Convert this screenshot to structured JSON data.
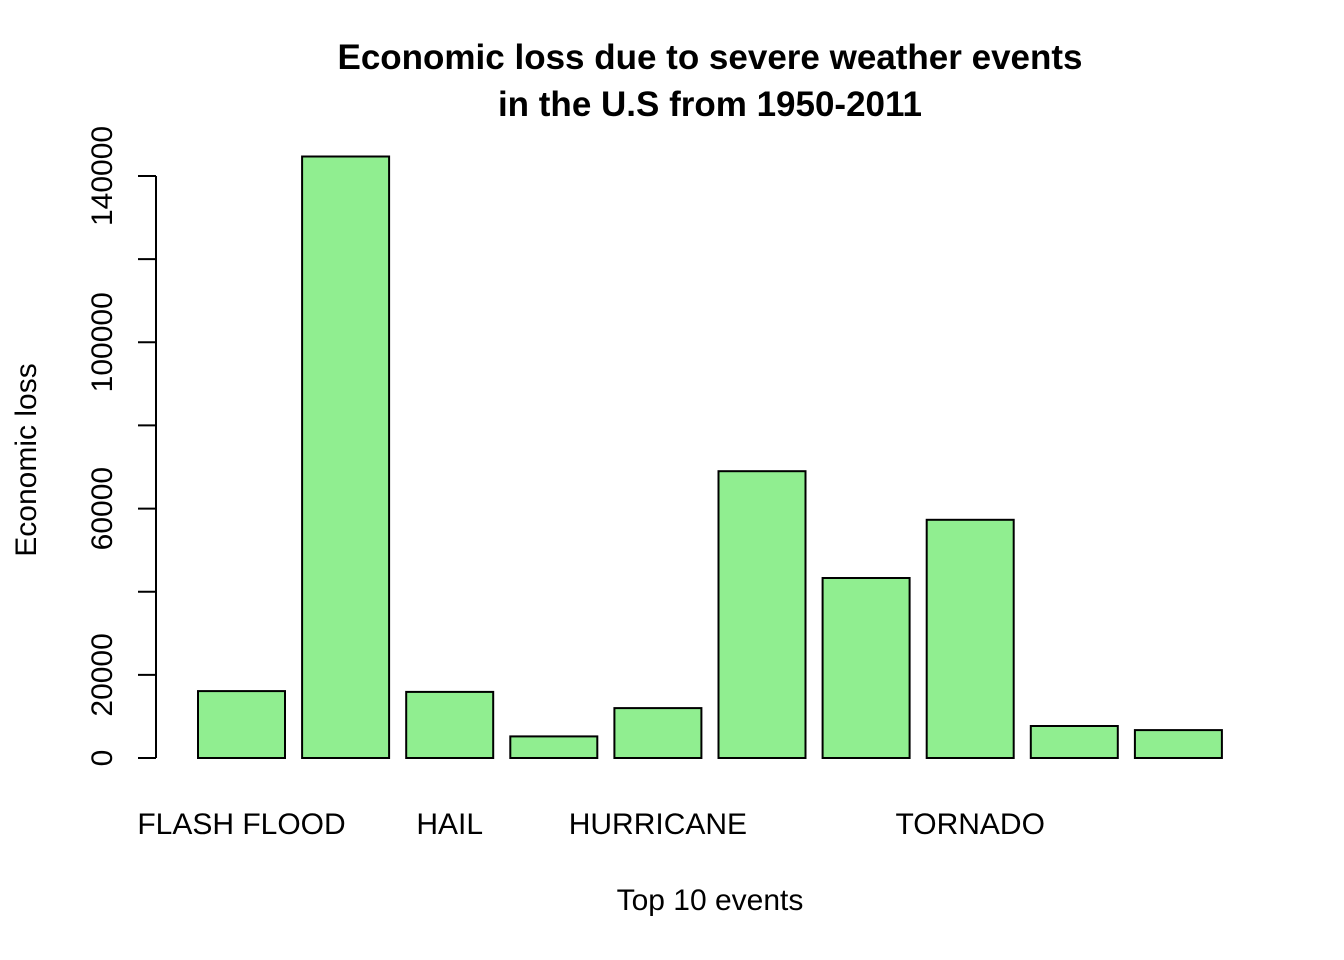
{
  "chart_data": {
    "type": "bar",
    "title_line1": "Economic loss due to severe weather events",
    "title_line2": "in the U.S from 1950-2011",
    "xlabel": "Top 10 events",
    "ylabel": "Economic loss",
    "categories": [
      "",
      "",
      "",
      "",
      "",
      "",
      "",
      "",
      "",
      ""
    ],
    "category_labels": [
      {
        "index": 0,
        "label": "FLASH FLOOD"
      },
      {
        "index": 2,
        "label": "HAIL"
      },
      {
        "index": 4,
        "label": "HURRICANE"
      },
      {
        "index": 7,
        "label": "TORNADO"
      }
    ],
    "values": [
      16100,
      144700,
      15900,
      5200,
      12000,
      69000,
      43300,
      57300,
      7700,
      6700
    ],
    "ylim": [
      0,
      145000
    ],
    "yticks": [
      0,
      20000,
      60000,
      100000,
      140000
    ],
    "yticks_minor": [
      40000,
      80000,
      120000
    ],
    "bar_color": "#90EE90",
    "grid": false,
    "legend": "none"
  }
}
